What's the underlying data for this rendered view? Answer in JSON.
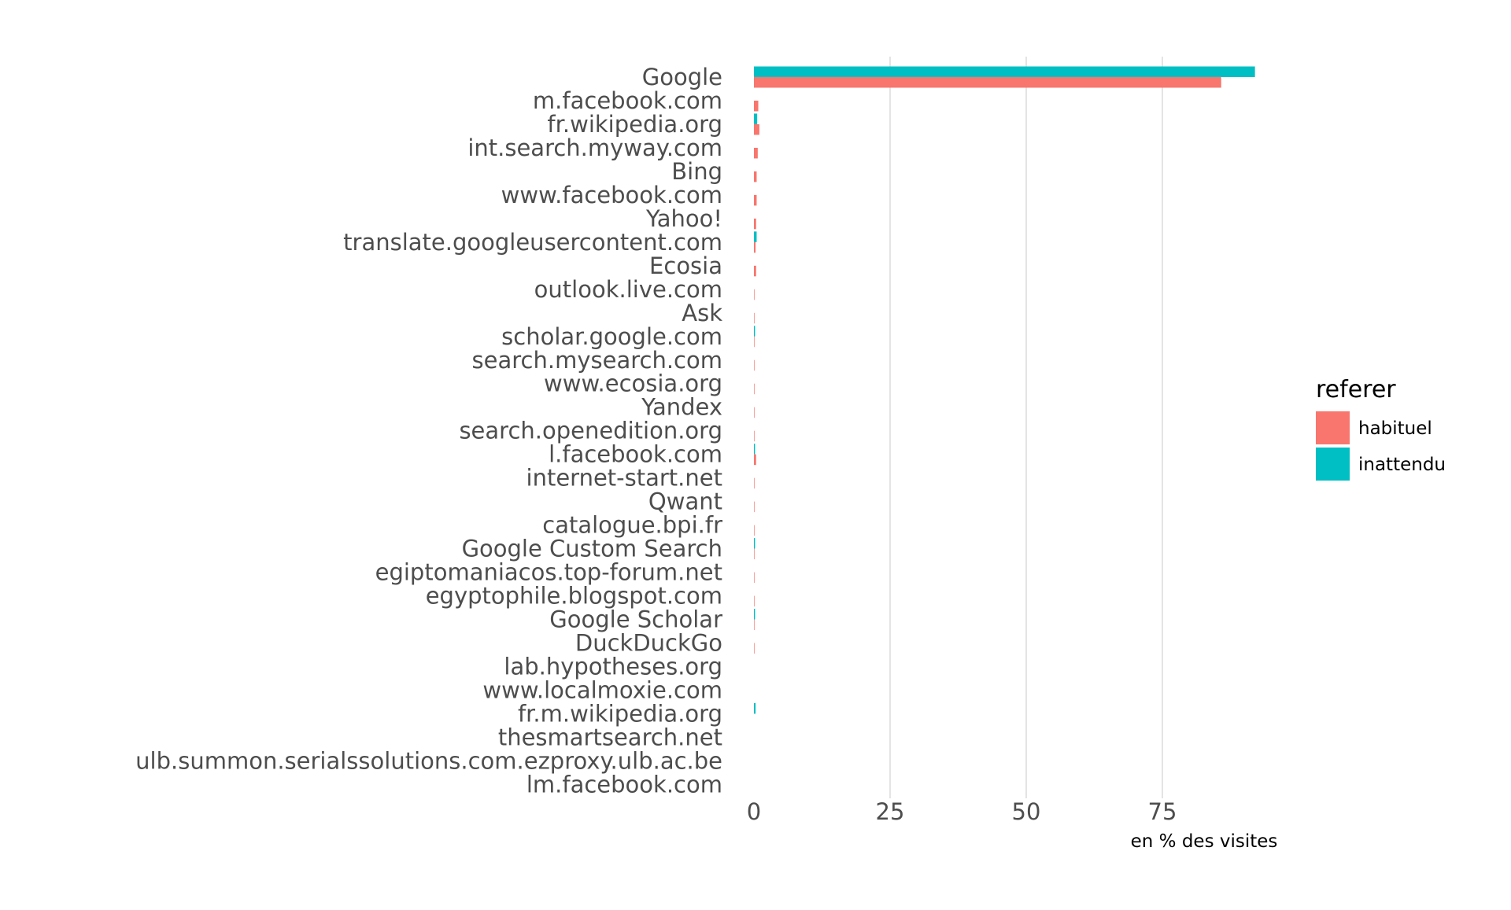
{
  "chart_data": {
    "type": "bar",
    "orientation": "horizontal",
    "categories": [
      "Google",
      "m.facebook.com",
      "fr.wikipedia.org",
      "int.search.myway.com",
      "Bing",
      "www.facebook.com",
      "Yahoo!",
      "translate.googleusercontent.com",
      "Ecosia",
      "outlook.live.com",
      "Ask",
      "scholar.google.com",
      "search.mysearch.com",
      "www.ecosia.org",
      "Yandex",
      "search.openedition.org",
      "l.facebook.com",
      "internet-start.net",
      "Qwant",
      "catalogue.bpi.fr",
      "Google Custom Search",
      "egiptomaniacos.top-forum.net",
      "egyptophile.blogspot.com",
      "Google Scholar",
      "DuckDuckGo",
      "lab.hypotheses.org",
      "www.localmoxie.com",
      "fr.m.wikipedia.org",
      "thesmartsearch.net",
      "ulb.summon.serialssolutions.com.ezproxy.ulb.ac.be",
      "lm.facebook.com"
    ],
    "series": [
      {
        "name": "habituel",
        "color": "#F8766D",
        "values": [
          85.8,
          0.8,
          1.0,
          0.7,
          0.5,
          0.5,
          0.4,
          0.3,
          0.4,
          0.1,
          0.1,
          0.1,
          0.1,
          0.1,
          0.1,
          0.1,
          0.4,
          0.1,
          0.1,
          0.1,
          0.1,
          0.1,
          0.1,
          0.1,
          0.1,
          0.0,
          0.0,
          0.0,
          0.0,
          0.0,
          0.0
        ]
      },
      {
        "name": "inattendu",
        "color": "#00BFC4",
        "values": [
          92.0,
          0.0,
          0.6,
          0.0,
          0.0,
          0.0,
          0.0,
          0.5,
          0.0,
          0.0,
          0.0,
          0.2,
          0.0,
          0.0,
          0.0,
          0.0,
          0.2,
          0.0,
          0.0,
          0.0,
          0.2,
          0.0,
          0.0,
          0.2,
          0.0,
          0.0,
          0.0,
          0.3,
          0.0,
          0.0,
          0.0
        ]
      }
    ],
    "xlabel": "en % des visites",
    "ylabel": "",
    "xlim": [
      0,
      96
    ],
    "xticks": [
      0,
      25,
      50,
      75
    ],
    "grid": true,
    "legend": {
      "title": "referer",
      "position": "right"
    }
  }
}
